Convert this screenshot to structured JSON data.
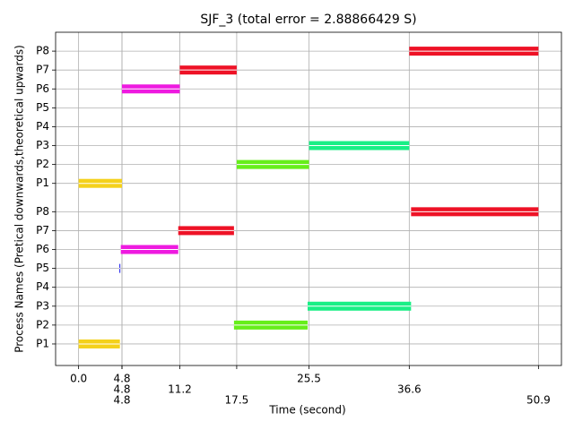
{
  "chart_data": {
    "type": "gantt",
    "title": "SJF_3 (total error = 2.88866429 S)",
    "xlabel": "Time (second)",
    "ylabel": "Process Names (Pretical downwards,theoretical upwards)",
    "xlim": [
      -2.545,
      53.445
    ],
    "ylim": [
      -0.14,
      17.5
    ],
    "xticks": [
      {
        "value": 0,
        "label": "0.0"
      },
      4.8,
      4.8,
      4.8,
      11.2,
      17.5,
      25.5,
      36.6,
      50.9
    ],
    "yticks": [
      {
        "value": 1,
        "label": "P1"
      },
      {
        "value": 2,
        "label": "P2"
      },
      {
        "value": 3,
        "label": "P3"
      },
      {
        "value": 4,
        "label": "P4"
      },
      {
        "value": 5,
        "label": "P5"
      },
      {
        "value": 6,
        "label": "P6"
      },
      {
        "value": 7,
        "label": "P7"
      },
      {
        "value": 8,
        "label": "P8"
      },
      {
        "value": 9.5,
        "label": "P1"
      },
      {
        "value": 10.5,
        "label": "P2"
      },
      {
        "value": 11.5,
        "label": "P3"
      },
      {
        "value": 12.5,
        "label": "P4"
      },
      {
        "value": 13.5,
        "label": "P5"
      },
      {
        "value": 14.5,
        "label": "P6"
      },
      {
        "value": 15.5,
        "label": "P7"
      },
      {
        "value": 16.5,
        "label": "P8"
      }
    ],
    "grid": true,
    "bars": [
      {
        "y": 9.5,
        "start": 0,
        "end": 4.8,
        "color": "#f4d11b"
      },
      {
        "y": 10.5,
        "start": 17.5,
        "end": 25.5,
        "color": "#66ee1a"
      },
      {
        "y": 11.5,
        "start": 25.5,
        "end": 36.6,
        "color": "#1aef86"
      },
      {
        "y": 14.5,
        "start": 4.8,
        "end": 11.2,
        "color": "#ee1ae0"
      },
      {
        "y": 15.5,
        "start": 11.2,
        "end": 17.5,
        "color": "#ee1226"
      },
      {
        "y": 16.5,
        "start": 36.6,
        "end": 50.9,
        "color": "#ee1226"
      },
      {
        "y": 1,
        "start": 0,
        "end": 4.57,
        "color": "#f4d11b"
      },
      {
        "y": 2,
        "start": 17.2,
        "end": 25.35,
        "color": "#66ee1a"
      },
      {
        "y": 3,
        "start": 25.35,
        "end": 36.8,
        "color": "#1aef86"
      },
      {
        "y": 5,
        "start": 4.5,
        "end": 4.62,
        "color": "#3a3aee"
      },
      {
        "y": 6,
        "start": 4.67,
        "end": 11.03,
        "color": "#ee1ae0"
      },
      {
        "y": 7,
        "start": 11.03,
        "end": 17.2,
        "color": "#ee1226"
      },
      {
        "y": 8,
        "start": 36.8,
        "end": 50.9,
        "color": "#ee1226"
      }
    ]
  }
}
